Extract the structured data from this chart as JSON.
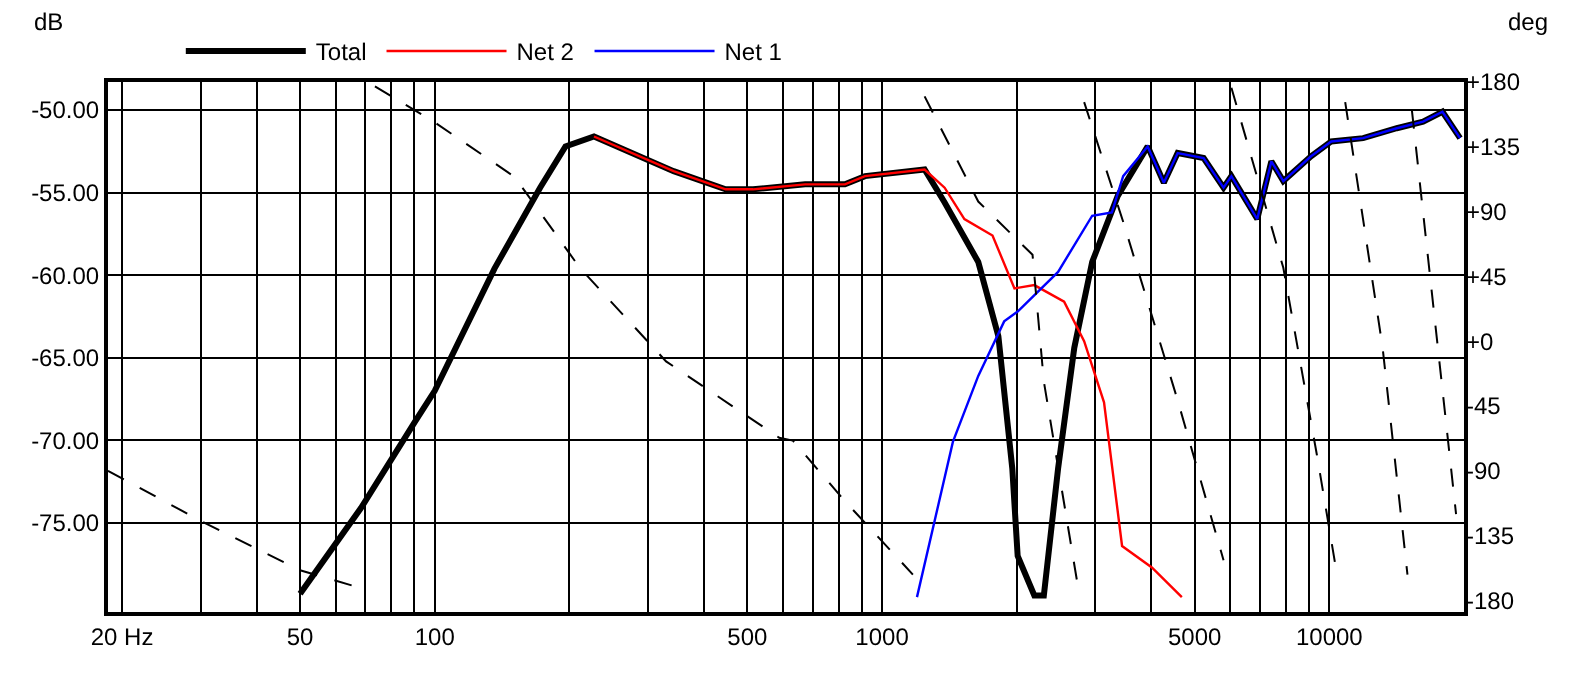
{
  "chart_data": {
    "type": "line",
    "ylabel": "dB",
    "y2label": "deg",
    "log": "x",
    "grid": true,
    "legend": "top left",
    "xlim": [
      18.6,
      20000
    ],
    "xticks": [
      {
        "value": 20,
        "label": "20 Hz"
      },
      {
        "value": 30,
        "label": null
      },
      {
        "value": 40,
        "label": null
      },
      50,
      {
        "value": 60,
        "label": null
      },
      {
        "value": 70,
        "label": null
      },
      {
        "value": 80,
        "label": null
      },
      {
        "value": 90,
        "label": null
      },
      100,
      {
        "value": 200,
        "label": null
      },
      {
        "value": 300,
        "label": null
      },
      {
        "value": 400,
        "label": null
      },
      500,
      {
        "value": 600,
        "label": null
      },
      {
        "value": 700,
        "label": null
      },
      {
        "value": 800,
        "label": null
      },
      {
        "value": 900,
        "label": null
      },
      1000,
      {
        "value": 2000,
        "label": null
      },
      {
        "value": 3000,
        "label": null
      },
      {
        "value": 4000,
        "label": null
      },
      5000,
      {
        "value": 6000,
        "label": null
      },
      {
        "value": 7000,
        "label": null
      },
      {
        "value": 8000,
        "label": null
      },
      {
        "value": 9000,
        "label": null
      },
      10000
    ],
    "ylim": [
      -80.4,
      -48.3
    ],
    "yticks": [
      {
        "value": -50,
        "label": "-50.00"
      },
      {
        "value": -55,
        "label": "-55.00"
      },
      {
        "value": -60,
        "label": "-60.00"
      },
      {
        "value": -65,
        "label": "-65.00"
      },
      {
        "value": -70,
        "label": "-70.00"
      },
      {
        "value": -75,
        "label": "-75.00"
      }
    ],
    "y2lim": [
      -188,
      180
    ],
    "y2ticks": [
      {
        "value": 180,
        "label": "+180"
      },
      {
        "value": 135,
        "label": "+135"
      },
      {
        "value": 90,
        "label": "+90"
      },
      {
        "value": 45,
        "label": "+45"
      },
      {
        "value": 0,
        "label": "+0"
      },
      -45,
      -90,
      -135,
      -180
    ],
    "series": [
      {
        "name": "Total",
        "color": "#000000",
        "line_style": "solid",
        "x": [
          50,
          68.4,
          90.2,
          100,
          136,
          172,
          196,
          227,
          342,
          447,
          515,
          673,
          826,
          916,
          1245,
          1380,
          1641,
          1820,
          1955,
          2010,
          2190,
          2300,
          2475,
          2690,
          2950,
          3365,
          3925,
          4265,
          4580,
          5235,
          5800,
          6040,
          6900,
          7420,
          7890,
          9100,
          10100,
          11900,
          14150,
          16200,
          17900,
          19600
        ],
        "values": [
          -79.3,
          -74.1,
          -68.9,
          -67.0,
          -59.6,
          -54.7,
          -52.2,
          -51.6,
          -53.7,
          -54.8,
          -54.8,
          -54.5,
          -54.5,
          -54.0,
          -53.6,
          -55.6,
          -59.2,
          -63.7,
          -71.7,
          -77.0,
          -79.4,
          -79.4,
          -71.7,
          -64.4,
          -59.2,
          -55.2,
          -52.2,
          -54.4,
          -52.6,
          -52.9,
          -54.7,
          -54.0,
          -56.6,
          -53.1,
          -54.3,
          -52.8,
          -51.9,
          -51.7,
          -51.1,
          -50.7,
          -50.1,
          -51.7
        ]
      },
      {
        "name": "Net 2",
        "color": "#ff0000",
        "line_style": "solid",
        "x": [
          227,
          342,
          447,
          515,
          673,
          826,
          916,
          1245,
          1380,
          1528,
          1766,
          1977,
          2190,
          2553,
          2830,
          3135,
          3440,
          4010,
          4680
        ],
        "values": [
          -51.6,
          -53.7,
          -54.8,
          -54.8,
          -54.5,
          -54.5,
          -54.0,
          -53.6,
          -54.7,
          -56.6,
          -57.6,
          -60.8,
          -60.6,
          -61.6,
          -64.0,
          -67.7,
          -76.4,
          -77.7,
          -79.5
        ]
      },
      {
        "name": "Net 1",
        "color": "#0000ff",
        "line_style": "solid",
        "x": [
          1197,
          1440,
          1641,
          1875,
          2010,
          2475,
          2950,
          3265,
          3460,
          3925,
          4265,
          4580,
          5235,
          5800,
          6040,
          6900,
          7420,
          7890,
          9100,
          10100,
          11900,
          14150,
          16200,
          17900,
          19600
        ],
        "values": [
          -79.5,
          -70.1,
          -66.1,
          -62.8,
          -62.2,
          -59.8,
          -56.4,
          -56.2,
          -54.0,
          -52.2,
          -54.4,
          -52.6,
          -52.9,
          -54.7,
          -54.0,
          -56.6,
          -53.1,
          -54.3,
          -52.8,
          -51.9,
          -51.7,
          -51.1,
          -50.7,
          -50.1,
          -51.7
        ]
      },
      {
        "color": "#000000",
        "line_style": "dashed",
        "axis": "y2",
        "x": [
          18.6,
          30.1,
          50,
          66,
          70,
          73.5,
          100,
          151,
          211,
          329,
          589,
          632,
          826,
          1172,
          1200,
          1245,
          1641,
          2170,
          2300,
          2740,
          2780,
          2830,
          3460,
          4580,
          5800,
          5900,
          6040,
          7890,
          9380,
          10400,
          10600,
          10850,
          13150,
          14950,
          15100,
          15300,
          19200
        ],
        "values": [
          -90,
          -125,
          -159,
          -170,
          null,
          177,
          152,
          114,
          51,
          -14,
          -67,
          -69,
          -111,
          -162,
          null,
          170,
          97,
          60,
          -28,
          -170,
          null,
          166,
          83,
          -41,
          -152,
          null,
          176,
          51,
          -79,
          -162,
          null,
          166,
          -4,
          -162,
          null,
          160,
          -120
        ]
      }
    ]
  }
}
